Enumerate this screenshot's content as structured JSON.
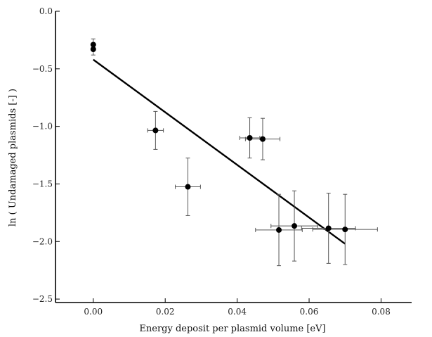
{
  "chart_data": {
    "type": "scatter",
    "title": "",
    "xlabel": "Energy deposit per plasmid volume [eV]",
    "ylabel": "ln ( Undamaged plasmids [-] )",
    "xlim": [
      -0.0105,
      0.0885
    ],
    "ylim": [
      -2.53,
      0.0
    ],
    "xticks": [
      0.0,
      0.02,
      0.04,
      0.06,
      0.08
    ],
    "xtick_labels": [
      "0.00",
      "0.02",
      "0.04",
      "0.06",
      "0.08"
    ],
    "yticks": [
      0.0,
      -0.5,
      -1.0,
      -1.5,
      -2.0,
      -2.5
    ],
    "ytick_labels": [
      "0.0",
      "−0.5",
      "−1.0",
      "−1.5",
      "−2.0",
      "−2.5"
    ],
    "grid": false,
    "colors": {
      "points": "#000000",
      "errorbars": "#555555",
      "fit": "#000000",
      "axes": "#000000"
    },
    "series": [
      {
        "points": [
          {
            "x": 0.0,
            "y": -0.29,
            "xerr": 0.0,
            "yerr": 0.05
          },
          {
            "x": 0.0,
            "y": -0.33,
            "xerr": 0.0,
            "yerr": 0.05
          },
          {
            "x": 0.0173,
            "y": -1.035,
            "xerr": 0.0022,
            "yerr": 0.165
          },
          {
            "x": 0.0263,
            "y": -1.525,
            "xerr": 0.0035,
            "yerr": 0.25
          },
          {
            "x": 0.0435,
            "y": -1.1,
            "xerr": 0.0028,
            "yerr": 0.175
          },
          {
            "x": 0.0471,
            "y": -1.11,
            "xerr": 0.0048,
            "yerr": 0.18
          },
          {
            "x": 0.0516,
            "y": -1.9,
            "xerr": 0.0065,
            "yerr": 0.31
          },
          {
            "x": 0.0559,
            "y": -1.865,
            "xerr": 0.0065,
            "yerr": 0.305
          },
          {
            "x": 0.0654,
            "y": -1.885,
            "xerr": 0.0075,
            "yerr": 0.305
          },
          {
            "x": 0.07,
            "y": -1.895,
            "xerr": 0.009,
            "yerr": 0.305
          }
        ]
      }
    ],
    "fit_line": {
      "x": [
        0.0,
        0.07
      ],
      "y": [
        -0.42,
        -2.02
      ]
    }
  }
}
